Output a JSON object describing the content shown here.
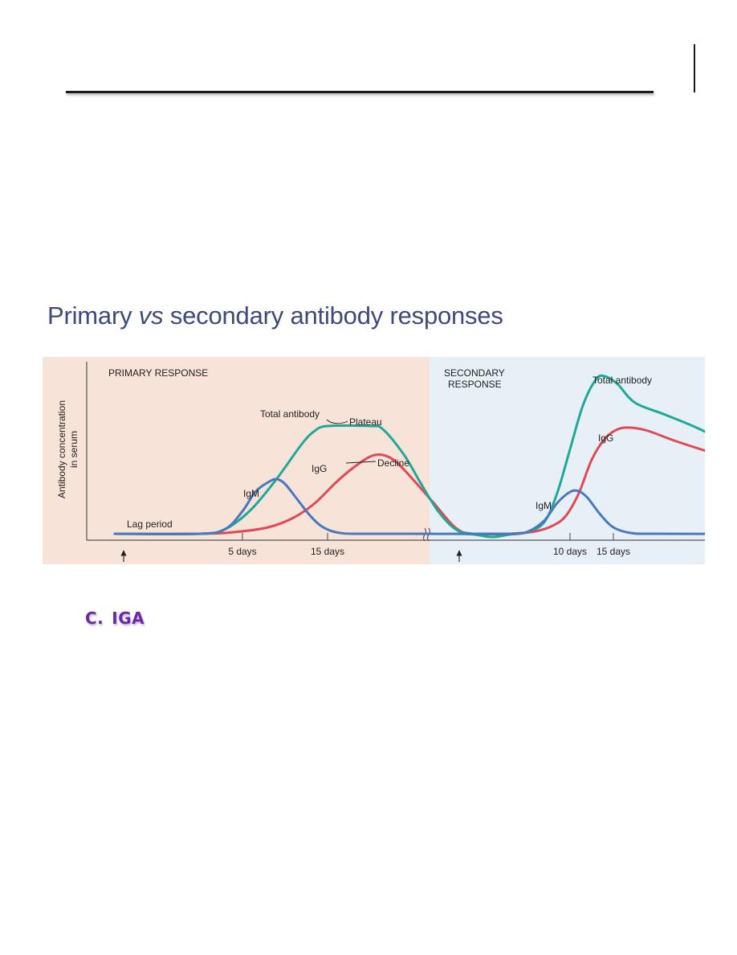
{
  "figure": {
    "title_part1": "Primary ",
    "title_em": "vs",
    "title_part2": " secondary antibody responses"
  },
  "section": {
    "letter": "C.",
    "label": "IGA"
  },
  "chart_data": {
    "type": "line",
    "ylabel_line1": "Antibody concentration",
    "ylabel_line2": "in serum",
    "colors": {
      "primary_bg": "#f7e3d8",
      "secondary_bg": "#e7f0f7",
      "total": "#1fa89a",
      "igg": "#e04a55",
      "igm": "#4a78bc",
      "axis": "#555555"
    },
    "panels": [
      {
        "name": "primary",
        "title": "PRIMARY RESPONSE",
        "x_ticks": [
          {
            "day": 5,
            "label": "5 days"
          },
          {
            "day": 15,
            "label": "15 days"
          }
        ],
        "region_label": "Lag period",
        "series": [
          {
            "name": "Total antibody",
            "points": [
              [
                -10,
                0
              ],
              [
                0,
                0
              ],
              [
                3,
                6
              ],
              [
                6,
                30
              ],
              [
                9,
                68
              ],
              [
                12,
                112
              ],
              [
                13.5,
                128
              ],
              [
                15,
                134
              ],
              [
                20,
                134
              ],
              [
                21.5,
                130
              ],
              [
                24,
                98
              ],
              [
                26,
                62
              ],
              [
                28,
                28
              ],
              [
                30,
                6
              ],
              [
                32,
                0
              ],
              [
                37,
                0
              ]
            ]
          },
          {
            "name": "IgG",
            "points": [
              [
                -10,
                0
              ],
              [
                0,
                0
              ],
              [
                4,
                2
              ],
              [
                8,
                8
              ],
              [
                11,
                20
              ],
              [
                13.5,
                38
              ],
              [
                16,
                64
              ],
              [
                18,
                82
              ],
              [
                20,
                96
              ],
              [
                21.5,
                98
              ],
              [
                23,
                90
              ],
              [
                25,
                68
              ],
              [
                27.5,
                38
              ],
              [
                30,
                8
              ],
              [
                32,
                0
              ],
              [
                37,
                0
              ]
            ]
          },
          {
            "name": "IgM",
            "points": [
              [
                -10,
                0
              ],
              [
                0,
                0
              ],
              [
                3,
                6
              ],
              [
                5,
                28
              ],
              [
                6.5,
                52
              ],
              [
                8,
                64
              ],
              [
                9,
                68
              ],
              [
                10,
                62
              ],
              [
                11.5,
                42
              ],
              [
                13,
                22
              ],
              [
                14.5,
                8
              ],
              [
                16.5,
                1
              ],
              [
                20,
                0
              ],
              [
                37,
                0
              ]
            ]
          }
        ],
        "annotations": [
          "Total antibody",
          "Plateau",
          "Decline",
          "IgG",
          "IgM"
        ]
      },
      {
        "name": "secondary",
        "title_line1": "SECONDARY",
        "title_line2": "RESPONSE",
        "x_ticks": [
          {
            "day": 10,
            "label": "10 days"
          },
          {
            "day": 15,
            "label": "15 days"
          }
        ],
        "series": [
          {
            "name": "Total antibody",
            "points": [
              [
                -3,
                0
              ],
              [
                -1,
                -1
              ],
              [
                1,
                -4
              ],
              [
                3,
                -1
              ],
              [
                5,
                2
              ],
              [
                7,
                14
              ],
              [
                8.5,
                50
              ],
              [
                10,
                105
              ],
              [
                11.5,
                160
              ],
              [
                13,
                192
              ],
              [
                14,
                196
              ],
              [
                15.5,
                186
              ],
              [
                17.5,
                163
              ],
              [
                21,
                148
              ],
              [
                25,
                130
              ],
              [
                29,
                106
              ],
              [
                31,
                90
              ]
            ]
          },
          {
            "name": "IgG",
            "points": [
              [
                -3,
                0
              ],
              [
                0,
                0
              ],
              [
                3,
                0
              ],
              [
                6,
                3
              ],
              [
                8,
                10
              ],
              [
                9.5,
                22
              ],
              [
                11,
                50
              ],
              [
                12.5,
                92
              ],
              [
                14,
                118
              ],
              [
                15.5,
                130
              ],
              [
                17,
                132
              ],
              [
                19,
                128
              ],
              [
                22,
                116
              ],
              [
                26,
                102
              ],
              [
                31,
                86
              ]
            ]
          },
          {
            "name": "IgM",
            "points": [
              [
                -3,
                0
              ],
              [
                0,
                0
              ],
              [
                3,
                0
              ],
              [
                5,
                2
              ],
              [
                7,
                16
              ],
              [
                8.5,
                38
              ],
              [
                10,
                52
              ],
              [
                11,
                53
              ],
              [
                12,
                45
              ],
              [
                13.5,
                24
              ],
              [
                15,
                8
              ],
              [
                17,
                1
              ],
              [
                20,
                0
              ],
              [
                31,
                0
              ]
            ]
          }
        ],
        "annotations": [
          "Total antibody",
          "IgG",
          "IgM"
        ]
      }
    ]
  }
}
